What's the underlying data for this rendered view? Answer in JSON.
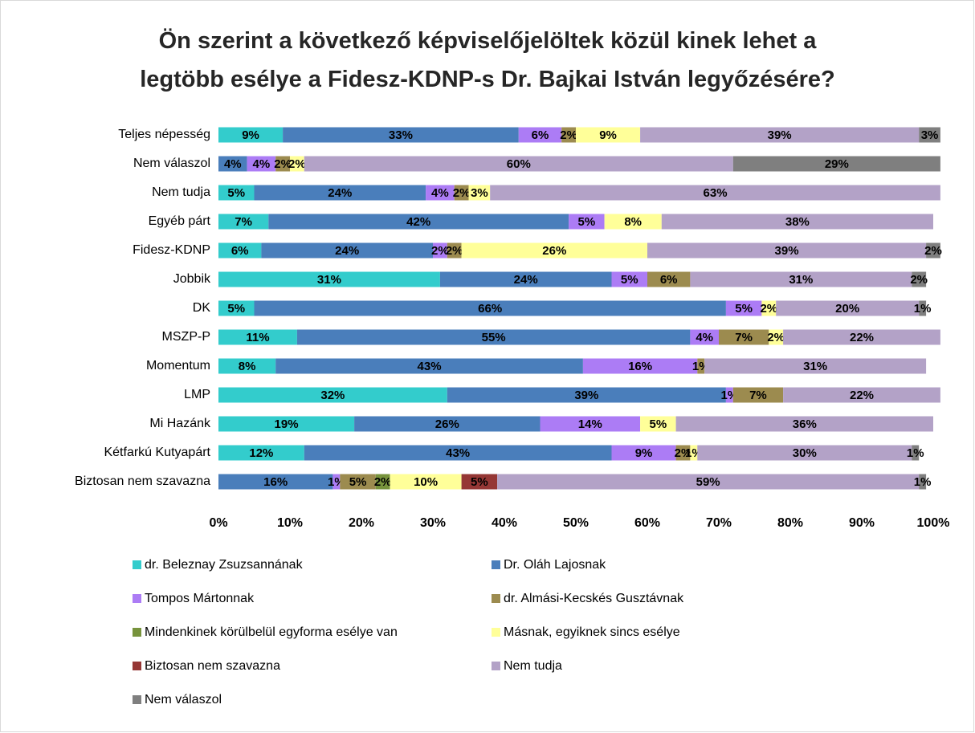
{
  "chart_data": {
    "type": "stacked_bar_horizontal",
    "title": "Ön szerint a következő képviselőjelöltek közül kinek lehet a legtöbb esélye a Fidesz-KDNP-s Dr. Bajkai István legyőzésére?",
    "categories": [
      "Teljes népesség",
      "Nem válaszol",
      "Nem tudja",
      "Egyéb párt",
      "Fidesz-KDNP",
      "Jobbik",
      "DK",
      "MSZP-P",
      "Momentum",
      "LMP",
      "Mi Hazánk",
      "Kétfarkú Kutyapárt",
      "Biztosan nem szavazna"
    ],
    "xlim": [
      0,
      100
    ],
    "xticks": [
      {
        "value": 0,
        "label": "0%"
      },
      {
        "value": 10,
        "label": "10%"
      },
      {
        "value": 20,
        "label": "20%"
      },
      {
        "value": 30,
        "label": "30%"
      },
      {
        "value": 40,
        "label": "40%"
      },
      {
        "value": 50,
        "label": "50%"
      },
      {
        "value": 60,
        "label": "60%"
      },
      {
        "value": 70,
        "label": "70%"
      },
      {
        "value": 80,
        "label": "80%"
      },
      {
        "value": 90,
        "label": "90%"
      },
      {
        "value": 100,
        "label": "100%"
      }
    ],
    "grid": false,
    "legend_position": "bottom",
    "series": [
      {
        "name": "dr. Beleznay Zsuzsannának",
        "color": "#33CCCC",
        "label_color": "#000000",
        "values": [
          9,
          null,
          5,
          7,
          6,
          31,
          5,
          11,
          8,
          32,
          19,
          12,
          null
        ],
        "value_labels": [
          "9%",
          null,
          "5%",
          "7%",
          "6%",
          "31%",
          "5%",
          "11%",
          "8%",
          "32%",
          "19%",
          "12%",
          null
        ]
      },
      {
        "name": "Dr. Oláh Lajosnak",
        "color": "#4A7EBB",
        "label_color": "#FFFFFF",
        "values": [
          33,
          4,
          24,
          42,
          24,
          24,
          66,
          55,
          43,
          39,
          26,
          43,
          16
        ],
        "value_labels": [
          "33%",
          "4%",
          "24%",
          "42%",
          "24%",
          "24%",
          "66%",
          "55%",
          "43%",
          "39%",
          "26%",
          "43%",
          "16%"
        ]
      },
      {
        "name": "Tompos Mártonnak",
        "color": "#AC7CF5",
        "label_color": "#000000",
        "values": [
          6,
          4,
          4,
          5,
          2,
          5,
          5,
          4,
          16,
          1,
          14,
          9,
          1
        ],
        "value_labels": [
          "6%",
          "4%",
          "4%",
          "5%",
          "2%",
          "5%",
          "5%",
          "4%",
          "16%",
          "1%",
          "14%",
          "9%",
          "1%"
        ]
      },
      {
        "name": "dr. Almási-Kecskés Gusztávnak",
        "color": "#9C8B4F",
        "label_color": "#000000",
        "values": [
          2,
          2,
          2,
          null,
          2,
          6,
          null,
          7,
          1,
          7,
          null,
          2,
          5
        ],
        "value_labels": [
          "2%",
          "2%",
          "2%",
          null,
          "2%",
          "6%",
          null,
          "7%",
          "1%",
          "7%",
          null,
          "2%",
          "5%"
        ]
      },
      {
        "name": "Mindenkinek körülbelül egyforma esélye van",
        "color": "#77933C",
        "label_color": "#000000",
        "values": [
          null,
          null,
          null,
          null,
          null,
          null,
          null,
          null,
          null,
          null,
          null,
          null,
          2
        ],
        "value_labels": [
          null,
          null,
          null,
          null,
          null,
          null,
          null,
          null,
          null,
          null,
          null,
          null,
          "2%"
        ]
      },
      {
        "name": "Másnak, egyiknek sincs esélye",
        "color": "#FFFF99",
        "label_color": "#000000",
        "values": [
          9,
          2,
          3,
          8,
          26,
          null,
          2,
          2,
          null,
          null,
          5,
          1,
          10
        ],
        "value_labels": [
          "9%",
          "2%",
          "3%",
          "8%",
          "26%",
          null,
          "2%",
          "2%",
          null,
          null,
          "5%",
          "1%",
          "10%"
        ]
      },
      {
        "name": "Biztosan nem szavazna",
        "color": "#953735",
        "label_color": "#FFFFFF",
        "values": [
          null,
          null,
          null,
          null,
          null,
          null,
          null,
          null,
          null,
          null,
          null,
          null,
          5
        ],
        "value_labels": [
          null,
          null,
          null,
          null,
          null,
          null,
          null,
          null,
          null,
          null,
          null,
          null,
          "5%"
        ]
      },
      {
        "name": "Nem tudja",
        "color": "#B3A2C7",
        "label_color": "#000000",
        "values": [
          39,
          60,
          63,
          38,
          39,
          31,
          20,
          22,
          31,
          22,
          36,
          30,
          59
        ],
        "value_labels": [
          "39%",
          "60%",
          "63%",
          "38%",
          "39%",
          "31%",
          "20%",
          "22%",
          "31%",
          "22%",
          "36%",
          "30%",
          "59%"
        ]
      },
      {
        "name": "Nem válaszol",
        "color": "#7F7F7F",
        "label_color": "#000000",
        "values": [
          3,
          29,
          null,
          null,
          2,
          2,
          1,
          null,
          null,
          null,
          null,
          1,
          1
        ],
        "value_labels": [
          "3%",
          "29%",
          null,
          null,
          "2%",
          "2%",
          "1%",
          null,
          null,
          null,
          null,
          "1%",
          "1%"
        ]
      }
    ]
  }
}
